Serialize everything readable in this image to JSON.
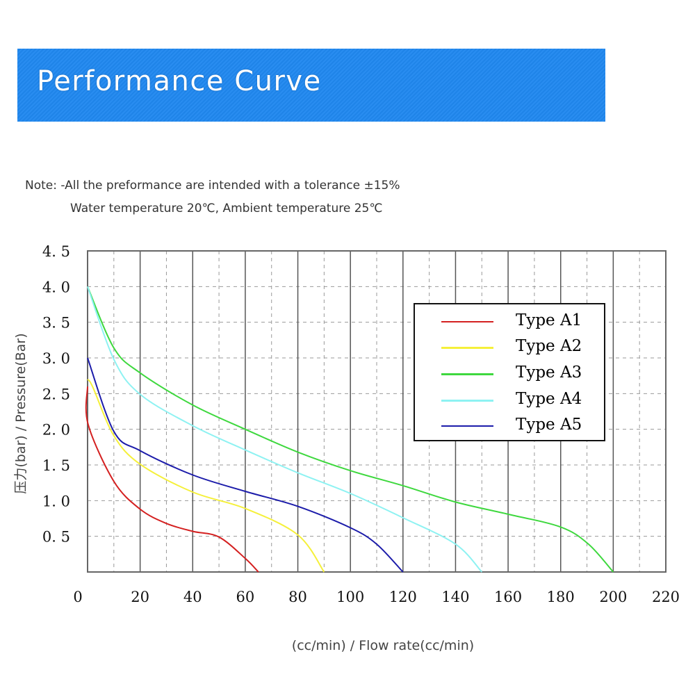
{
  "header": {
    "title": "Performance Curve"
  },
  "notes": {
    "line1": "Note: -All the preformance are intended with a tolerance ±15%",
    "line2": "Water temperature 20℃, Ambient temperature 25℃"
  },
  "chart_data": {
    "type": "line",
    "title": "",
    "xlabel": "(cc/min) / Flow rate(cc/min)",
    "ylabel": "压力(bar) / Pressure(Bar)",
    "xlim": [
      0,
      220
    ],
    "ylim": [
      0,
      4.5
    ],
    "x_ticks": [
      "0",
      "20",
      "40",
      "60",
      "80",
      "100",
      "120",
      "140",
      "160",
      "180",
      "200",
      "220"
    ],
    "y_ticks": [
      "0.5",
      "1.0",
      "1.5",
      "2.0",
      "2.5",
      "3.0",
      "3.5",
      "4.0",
      "4.5"
    ],
    "grid": true,
    "legend_position": "top-right",
    "series": [
      {
        "name": "Type A1",
        "color": "#d42020",
        "x": [
          0,
          0.2,
          10,
          20,
          30,
          40,
          50,
          60,
          65
        ],
        "y": [
          2.6,
          2.07,
          1.27,
          0.88,
          0.68,
          0.57,
          0.49,
          0.19,
          0
        ]
      },
      {
        "name": "Type A2",
        "color": "#f5f03a",
        "x": [
          0,
          2,
          10,
          20,
          40,
          60,
          80,
          90
        ],
        "y": [
          2.7,
          2.59,
          1.91,
          1.51,
          1.12,
          0.89,
          0.52,
          0
        ]
      },
      {
        "name": "Type A3",
        "color": "#3ed83e",
        "x": [
          0,
          10,
          20,
          40,
          60,
          80,
          100,
          120,
          140,
          160,
          180,
          190.6,
          200
        ],
        "y": [
          4.0,
          3.14,
          2.79,
          2.34,
          2.0,
          1.68,
          1.42,
          1.21,
          0.98,
          0.81,
          0.63,
          0.39,
          0
        ]
      },
      {
        "name": "Type A4",
        "color": "#8ef2f2",
        "x": [
          0,
          10,
          20,
          40,
          60,
          80,
          100,
          120,
          140,
          150
        ],
        "y": [
          4.0,
          2.98,
          2.49,
          2.05,
          1.71,
          1.39,
          1.1,
          0.76,
          0.39,
          0
        ]
      },
      {
        "name": "Type A5",
        "color": "#1c1caa",
        "x": [
          0,
          10,
          20,
          40,
          60,
          80,
          100,
          110,
          120
        ],
        "y": [
          3.0,
          1.97,
          1.7,
          1.36,
          1.13,
          0.92,
          0.62,
          0.39,
          0
        ]
      }
    ]
  }
}
